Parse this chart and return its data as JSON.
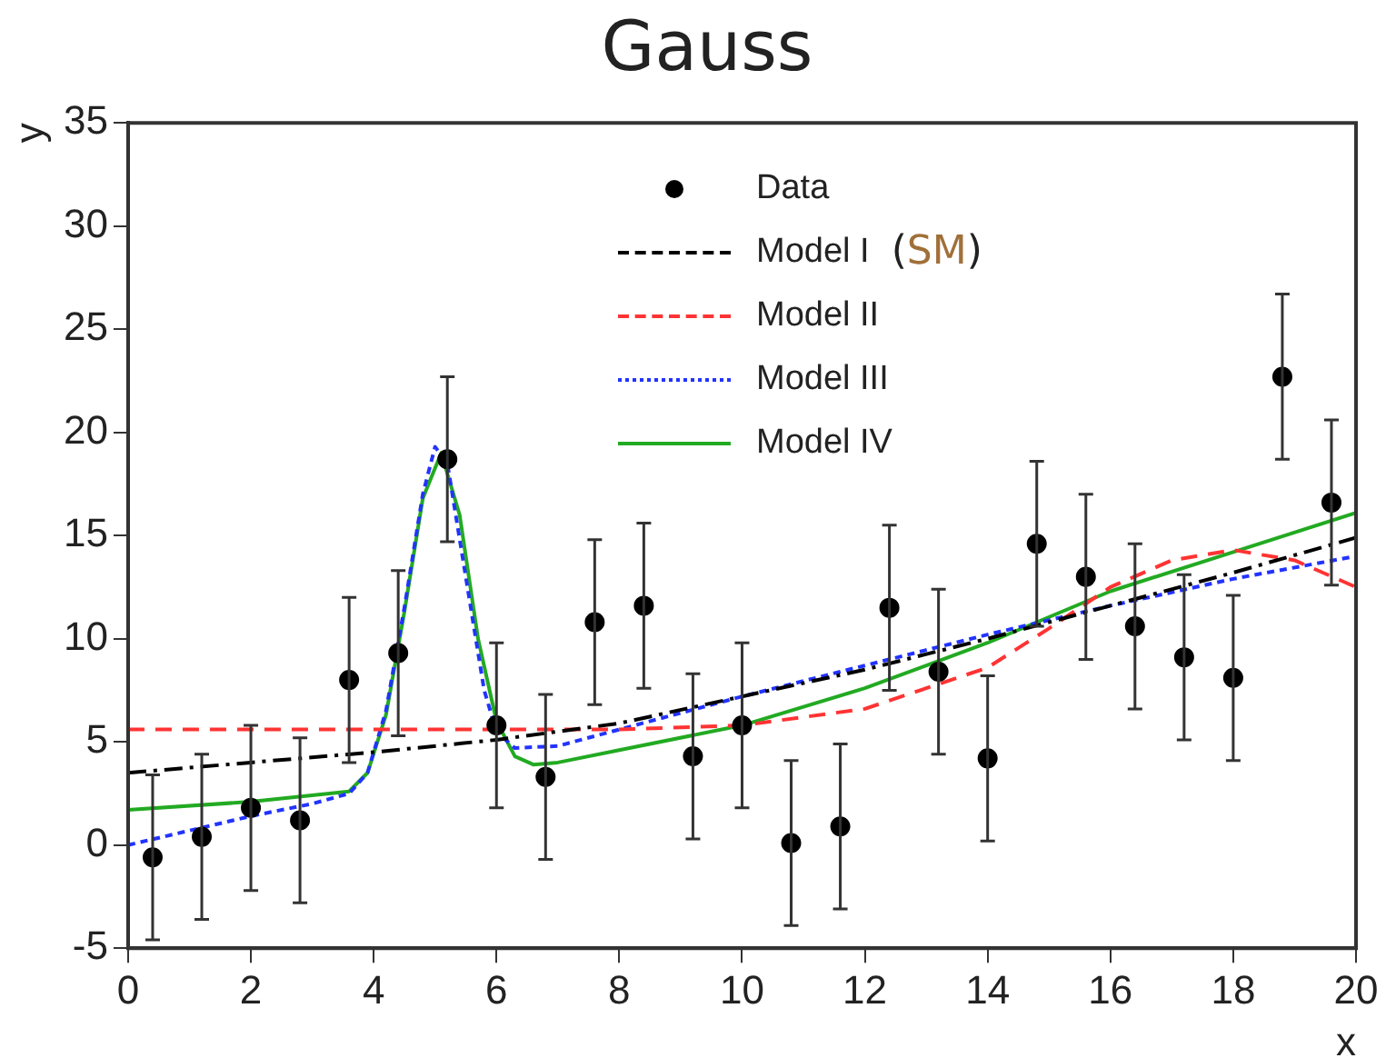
{
  "chart_data": {
    "type": "line",
    "title": "Gauss",
    "xlabel": "x",
    "ylabel": "y",
    "xlim": [
      0,
      20
    ],
    "xticks": [
      0,
      2,
      4,
      6,
      8,
      10,
      12,
      14,
      16,
      18,
      20
    ],
    "ylim": [
      -5,
      35
    ],
    "yticks": [
      -5,
      0,
      5,
      10,
      15,
      20,
      25,
      30,
      35
    ],
    "grid": false,
    "legend": "top",
    "annotations": [
      "(SM)"
    ],
    "series": [
      {
        "name": "Data",
        "type": "scatter",
        "marker": "circle",
        "color": "#000000",
        "x": [
          0.4,
          1.2,
          2,
          2.8,
          3.6,
          4.4,
          5.2,
          6,
          6.8,
          7.6,
          8.4,
          9.2,
          10,
          10.8,
          11.6,
          12.4,
          13.2,
          14,
          14.8,
          15.6,
          16.4,
          17.2,
          18,
          18.8,
          19.6
        ],
        "values": [
          -0.6,
          0.4,
          1.8,
          1.2,
          8.0,
          9.3,
          18.7,
          5.8,
          3.3,
          10.8,
          11.6,
          4.3,
          5.8,
          0.1,
          0.9,
          11.5,
          8.4,
          4.2,
          14.6,
          13.0,
          10.6,
          9.1,
          8.1,
          22.7,
          16.6
        ],
        "errors": [
          4,
          4,
          4,
          4,
          4,
          4,
          4,
          4,
          4,
          4,
          4,
          4,
          4,
          4,
          4,
          4,
          4,
          4,
          4,
          4,
          4,
          4,
          4,
          4,
          4
        ]
      },
      {
        "name": "Model I",
        "type": "line",
        "line_style": "dashdot",
        "color": "#000000",
        "x": [
          0,
          2,
          4,
          6,
          8,
          10,
          12,
          14,
          16,
          18,
          20
        ],
        "values": [
          3.5,
          4.0,
          4.5,
          5.1,
          5.9,
          7.2,
          8.5,
          10.0,
          11.6,
          13.2,
          14.9
        ]
      },
      {
        "name": "Model II",
        "type": "line",
        "line_style": "dashed",
        "color": "#ff3333",
        "x": [
          0,
          4,
          8,
          10,
          12,
          14,
          15,
          16,
          17,
          18,
          19,
          20
        ],
        "values": [
          5.6,
          5.6,
          5.6,
          5.8,
          6.6,
          8.6,
          10.5,
          12.5,
          13.8,
          14.3,
          13.8,
          12.5
        ]
      },
      {
        "name": "Model III",
        "type": "line",
        "line_style": "dotted",
        "color": "#2233ff",
        "x": [
          0,
          1,
          2,
          3,
          3.6,
          3.9,
          4.2,
          4.5,
          4.8,
          5.0,
          5.2,
          5.5,
          5.8,
          6.0,
          6.3,
          7,
          8,
          10,
          12,
          14,
          16,
          18,
          20
        ],
        "values": [
          0,
          0.7,
          1.4,
          2.0,
          2.5,
          3.5,
          6.5,
          11.5,
          17,
          19.3,
          18.5,
          13,
          7.5,
          5.5,
          4.7,
          4.8,
          5.6,
          7.2,
          8.7,
          10.2,
          11.6,
          12.9,
          14.0
        ]
      },
      {
        "name": "Model IV",
        "type": "line",
        "line_style": "solid",
        "color": "#22aa22",
        "x": [
          0,
          2,
          3.6,
          3.9,
          4.2,
          4.5,
          4.8,
          5.1,
          5.4,
          5.7,
          6.0,
          6.3,
          6.6,
          7,
          8,
          10,
          12,
          14,
          16,
          18,
          20
        ],
        "values": [
          1.7,
          2.1,
          2.6,
          3.5,
          6.3,
          11.3,
          16.8,
          19.0,
          16,
          10,
          6,
          4.3,
          3.9,
          4.0,
          4.6,
          5.8,
          7.6,
          9.8,
          12.3,
          14.2,
          16.1
        ]
      }
    ]
  }
}
